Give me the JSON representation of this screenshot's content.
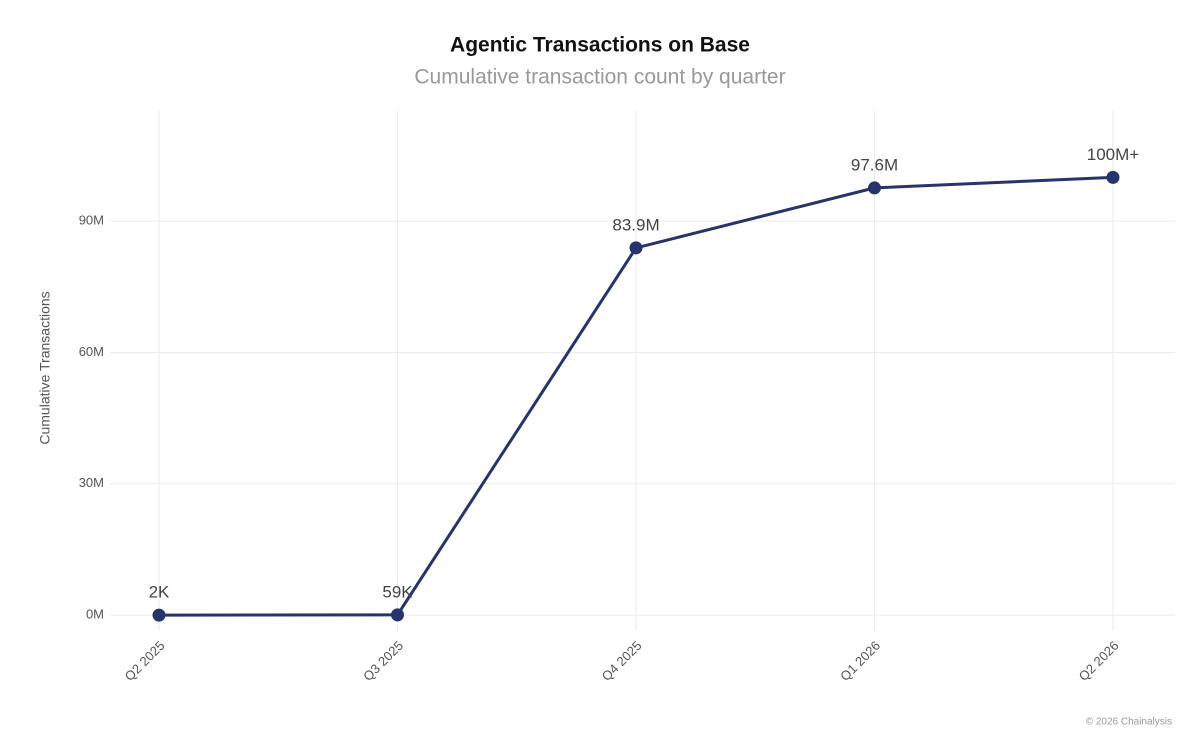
{
  "chart_data": {
    "type": "line",
    "title": "Agentic Transactions on Base",
    "subtitle": "Cumulative transaction count by quarter",
    "y_label": "Cumulative Transactions",
    "footer": "© 2026 Chainalysis",
    "categories": [
      "Q2 2025",
      "Q3 2025",
      "Q4 2025",
      "Q1 2026",
      "Q2 2026"
    ],
    "series": [
      {
        "name": "Cumulative Transactions",
        "color": "#27346b",
        "values": [
          2000,
          59000,
          83900000,
          97600000,
          100000000
        ],
        "value_labels": [
          "2K",
          "59K",
          "83.9M",
          "97.6M",
          "100M+"
        ]
      }
    ],
    "ylim": [
      -3400000,
      115400000
    ],
    "yticks": [
      {
        "value": 0,
        "label": "0M"
      },
      {
        "value": 30000000,
        "label": "30M"
      },
      {
        "value": 60000000,
        "label": "60M"
      },
      {
        "value": 90000000,
        "label": "90M"
      }
    ],
    "grid": true
  }
}
